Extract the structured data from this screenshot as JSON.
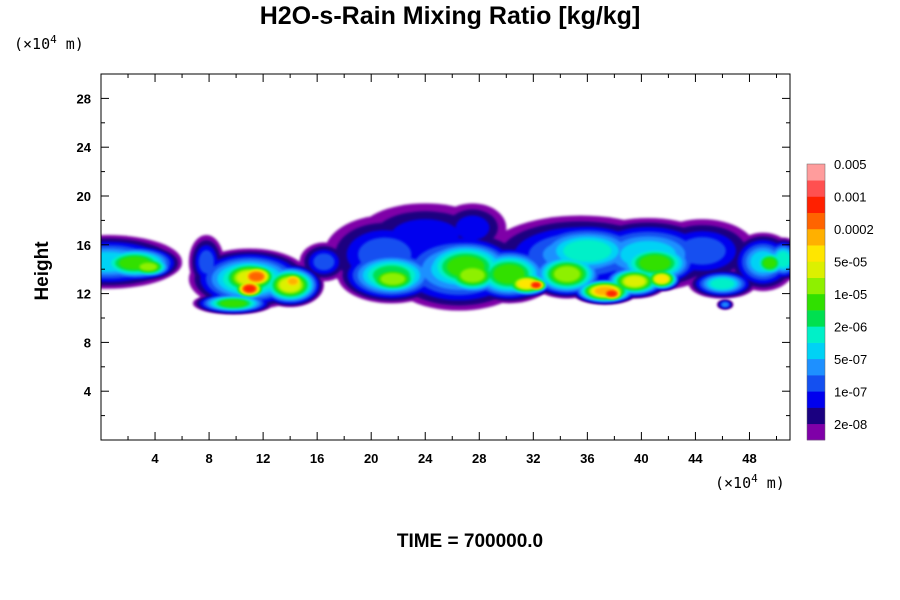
{
  "chart_data": {
    "type": "heatmap",
    "title": "H2O-s-Rain Mixing Ratio [kg/kg]",
    "ylabel": "Height",
    "xlabel": "",
    "x_unit_prefix": "(×10",
    "x_unit_exp": "4",
    "x_unit_suffix": " m)",
    "y_unit_prefix": "(×10",
    "y_unit_exp": "4",
    "y_unit_suffix": " m)",
    "footer": "TIME = 700000.0",
    "xlim": [
      0,
      51
    ],
    "ylim": [
      0,
      30
    ],
    "x_ticks": [
      "4",
      "8",
      "12",
      "16",
      "20",
      "24",
      "28",
      "32",
      "36",
      "40",
      "44",
      "48"
    ],
    "x_tick_values": [
      4,
      8,
      12,
      16,
      20,
      24,
      28,
      32,
      36,
      40,
      44,
      48
    ],
    "y_ticks": [
      "4",
      "8",
      "12",
      "16",
      "20",
      "24",
      "28"
    ],
    "y_tick_values": [
      4,
      8,
      12,
      16,
      20,
      24,
      28
    ],
    "colorbar": {
      "colors": [
        "#7f00a8",
        "#1a0080",
        "#0000ee",
        "#1450f0",
        "#1e90ff",
        "#00d2f5",
        "#00f0c8",
        "#00e050",
        "#30e000",
        "#8ef000",
        "#dcf000",
        "#ffe600",
        "#ffb000",
        "#ff6400",
        "#ff2000",
        "#ff5050",
        "#ff9c9c"
      ],
      "labels": [
        "2e-08",
        "1e-07",
        "5e-07",
        "2e-06",
        "1e-05",
        "5e-05",
        "0.0002",
        "0.001",
        "0.005"
      ]
    },
    "field_description": "2D cross-section of rain mixing ratio; main cloud band between 11 and 19 x10^4 m height across full horizontal domain, peak values (~0.001) near x=10-12, x=31-33 and x=36-38"
  }
}
